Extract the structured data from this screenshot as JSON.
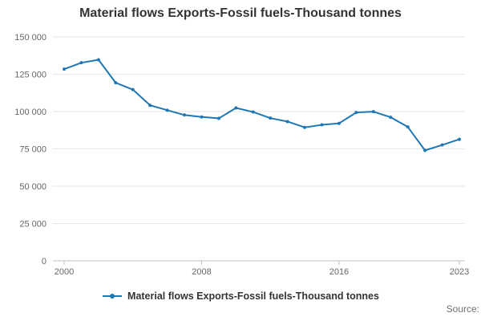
{
  "source_label": "Source:",
  "colors": {
    "line": "#1f77b4",
    "grid": "#e6e6e6",
    "axis": "#c0c0c0",
    "tick_text": "#666666",
    "title_text": "#333333"
  },
  "legend": {
    "symbol": "line-with-dot-marker"
  },
  "chart_data": {
    "type": "line",
    "title": "Material flows Exports-Fossil fuels-Thousand tonnes",
    "xlabel": "",
    "ylabel": "",
    "x": [
      2000,
      2001,
      2002,
      2003,
      2004,
      2005,
      2006,
      2007,
      2008,
      2009,
      2010,
      2011,
      2012,
      2013,
      2014,
      2015,
      2016,
      2017,
      2018,
      2019,
      2020,
      2021,
      2022,
      2023
    ],
    "series": [
      {
        "name": "Material flows Exports-Fossil fuels-Thousand tonnes",
        "values": [
          128400,
          132700,
          134700,
          119300,
          114700,
          104200,
          100900,
          97700,
          96400,
          95400,
          102400,
          99700,
          95600,
          93300,
          89400,
          91100,
          92100,
          99400,
          99900,
          96200,
          89700,
          74000,
          77600,
          81400
        ]
      }
    ],
    "xlim": [
      2000,
      2023
    ],
    "ylim": [
      0,
      150000
    ],
    "xticks": [
      2000,
      2008,
      2016,
      2023
    ],
    "yticks": [
      0,
      25000,
      50000,
      75000,
      100000,
      125000,
      150000
    ],
    "ytick_labels": [
      "0",
      "25 000",
      "50 000",
      "75 000",
      "100 000",
      "125 000",
      "150 000"
    ],
    "grid": true,
    "legend_position": "bottom",
    "marker": "circle"
  }
}
